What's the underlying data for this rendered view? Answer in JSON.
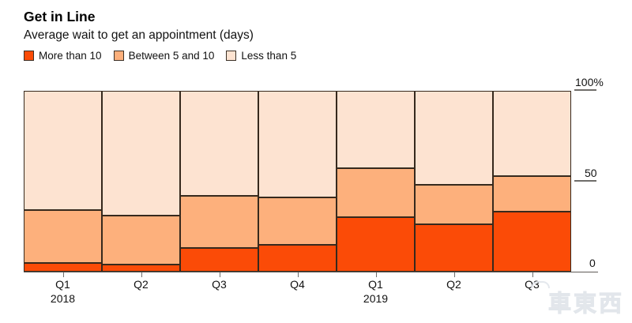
{
  "header": {
    "title": "Get in Line",
    "subtitle": "Average wait to get an appointment (days)"
  },
  "legend": [
    {
      "label": "More than 10",
      "color": "#fb4b07"
    },
    {
      "label": "Between 5 and 10",
      "color": "#fdb07c"
    },
    {
      "label": "Less than 5",
      "color": "#fde3d1"
    }
  ],
  "chart_data": {
    "type": "bar",
    "stacked": true,
    "title": "Get in Line",
    "subtitle": "Average wait to get an appointment (days)",
    "xlabel": "",
    "ylabel": "",
    "units": "percent of responses",
    "ylim": [
      0,
      100
    ],
    "y_ticks": [
      {
        "label": "100%",
        "value": 100
      },
      {
        "label": "50",
        "value": 50
      },
      {
        "label": "0",
        "value": 0
      }
    ],
    "grid": false,
    "legend_position": "top",
    "categories": [
      "Q1",
      "Q2",
      "Q3",
      "Q4",
      "Q1",
      "Q2",
      "Q3"
    ],
    "category_year_labels": [
      "2018",
      "",
      "",
      "",
      "2019",
      "",
      ""
    ],
    "series": [
      {
        "name": "More than 10",
        "color": "#fb4b07",
        "values": [
          5,
          4,
          13,
          15,
          30,
          26,
          33
        ]
      },
      {
        "name": "Between 5 and 10",
        "color": "#fdb07c",
        "values": [
          29,
          27,
          29,
          26,
          27,
          22,
          20
        ]
      },
      {
        "name": "Less than 5",
        "color": "#fde3d1",
        "values": [
          66,
          69,
          58,
          59,
          43,
          52,
          47
        ]
      }
    ]
  },
  "colors": {
    "segment_border": "#36291d",
    "axis": "#5f5b57",
    "tick": "#6f6d6a",
    "text": "#121212"
  },
  "watermark": {
    "text": "車東西"
  }
}
